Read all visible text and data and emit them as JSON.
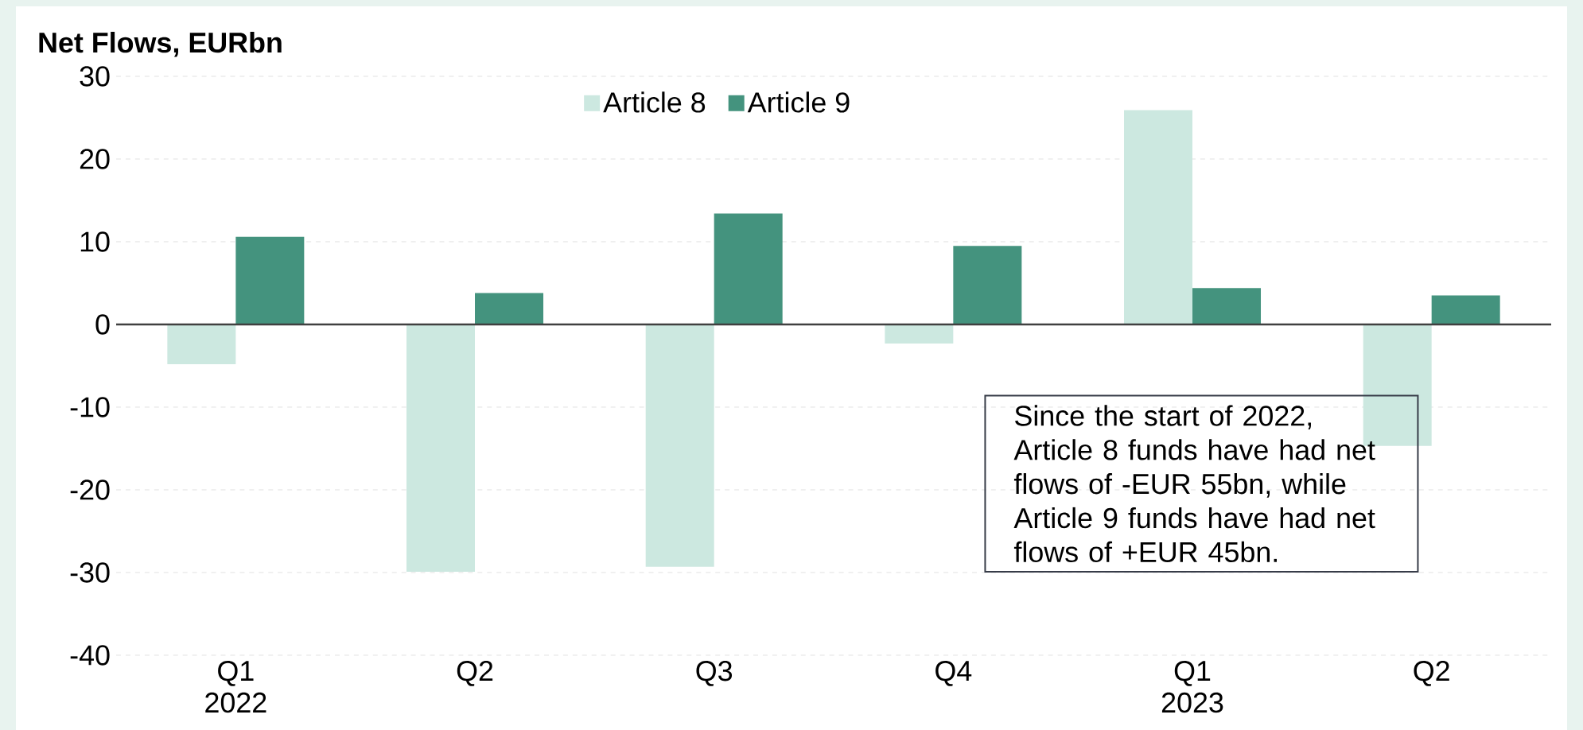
{
  "chart_data": {
    "type": "bar",
    "title": "Net Flows, EURbn",
    "categories": [
      "Q1 2022",
      "Q2",
      "Q3",
      "Q4",
      "Q1 2023",
      "Q2"
    ],
    "series": [
      {
        "name": "Article 8",
        "color": "#cce8e0",
        "values": [
          -4.8,
          -29.9,
          -29.3,
          -2.3,
          25.9,
          -14.7
        ]
      },
      {
        "name": "Article 9",
        "color": "#44937e",
        "values": [
          10.6,
          3.8,
          13.4,
          9.5,
          4.4,
          3.5
        ]
      }
    ],
    "ylim": [
      -40,
      30
    ],
    "yticks": [
      -40,
      -30,
      -20,
      -10,
      0,
      10,
      20,
      30
    ],
    "grid": "y",
    "legend": "top",
    "annotations": [
      "Since the start of 2022, Article 8 funds have had net flows of -EUR 55bn, while Article 9 funds have had net flows of +EUR 45bn."
    ]
  }
}
